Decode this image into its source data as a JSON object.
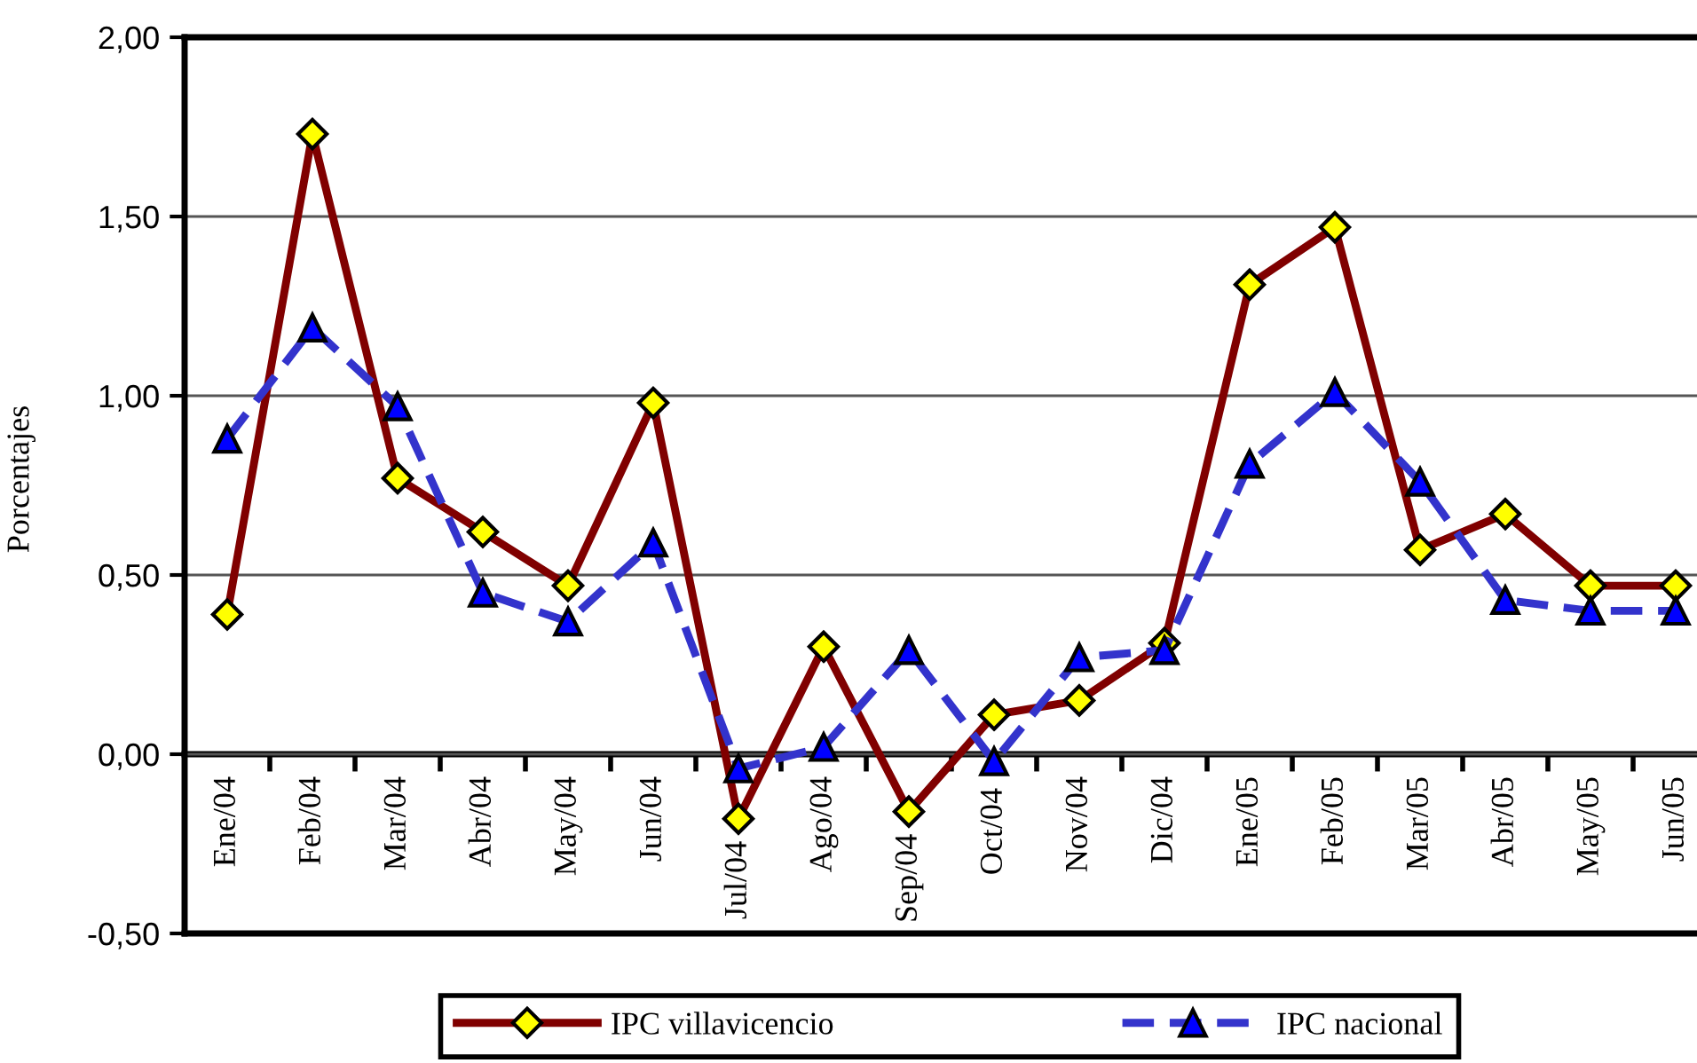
{
  "chart_data": {
    "type": "line",
    "ylabel": "Porcentajes",
    "categories": [
      "Ene/04",
      "Feb/04",
      "Mar/04",
      "Abr/04",
      "May/04",
      "Jun/04",
      "Jul/04",
      "Ago/04",
      "Sep/04",
      "Oct/04",
      "Nov/04",
      "Dic/04",
      "Ene/05",
      "Feb/05",
      "Mar/05",
      "Abr/05",
      "May/05",
      "Jun/05"
    ],
    "series": [
      {
        "name": "IPC villavicencio",
        "color": "#800000",
        "marker": "diamond",
        "line_style": "solid",
        "values": [
          0.39,
          1.73,
          0.77,
          0.62,
          0.47,
          0.98,
          -0.18,
          0.3,
          -0.16,
          0.11,
          0.15,
          0.31,
          1.31,
          1.47,
          0.57,
          0.67,
          0.47,
          0.47
        ]
      },
      {
        "name": "IPC nacional",
        "color": "#3333cc",
        "marker": "triangle",
        "line_style": "dashed",
        "values": [
          0.88,
          1.19,
          0.97,
          0.45,
          0.37,
          0.59,
          -0.04,
          0.02,
          0.29,
          -0.02,
          0.27,
          0.29,
          0.81,
          1.01,
          0.76,
          0.43,
          0.4,
          0.4
        ]
      }
    ],
    "ylim": [
      -0.5,
      2
    ],
    "yticks": [
      {
        "value": -0.5,
        "label": "-0,50"
      },
      {
        "value": 0,
        "label": "0,00"
      },
      {
        "value": 0.5,
        "label": "0,50"
      },
      {
        "value": 1,
        "label": "1,00"
      },
      {
        "value": 1.5,
        "label": "1,50"
      },
      {
        "value": 2,
        "label": "2,00"
      }
    ],
    "grid": "y",
    "legend": "bottom"
  }
}
